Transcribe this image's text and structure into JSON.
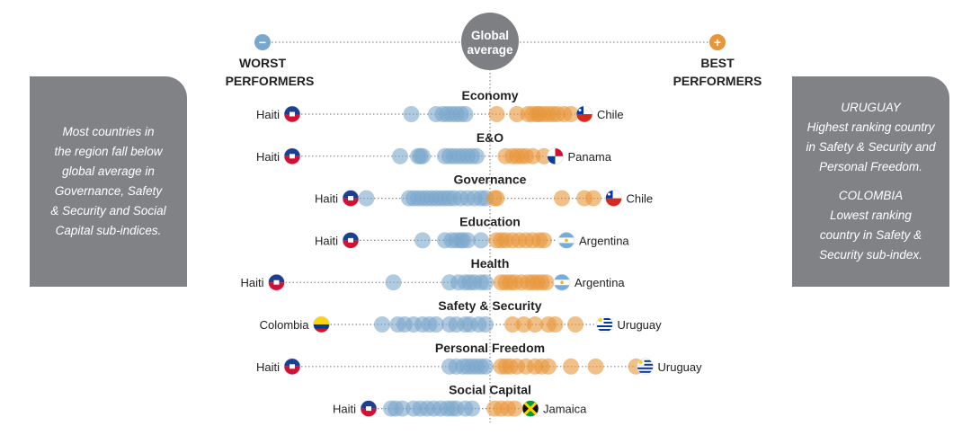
{
  "legend": {
    "worst_line1": "WORST",
    "worst_line2": "PERFORMERS",
    "best_line1": "BEST",
    "best_line2": "PERFORMERS",
    "center_line1": "Global",
    "center_line2": "average",
    "minus_symbol": "−",
    "plus_symbol": "+"
  },
  "left_panel": {
    "lines": [
      "Most countries in",
      "the region fall below",
      "global average in",
      "Governance, Safety",
      "& Security and Social",
      "Capital sub-indices."
    ]
  },
  "right_panel": {
    "block1": [
      "URUGUAY",
      "Highest ranking country",
      "in Safety & Security and",
      "Personal Freedom."
    ],
    "block2": [
      "COLOMBIA",
      "Lowest ranking",
      "country in Safety &",
      "Security sub-index."
    ]
  },
  "colors": {
    "below_average": "#7ba7cc",
    "above_average": "#e8963a",
    "average_circle": "#7d7f82",
    "panel": "#808285",
    "dotted_line": "#8a8a8a"
  },
  "chart_data": {
    "type": "scatter",
    "description_of_encoding": "",
    "rows": [
      {
        "category": "Economy",
        "worst": {
          "country": "Haiti",
          "flag": "haiti-flag",
          "x": -0.88
        },
        "best": {
          "country": "Chile",
          "flag": "chile-flag",
          "x": 0.42
        },
        "points": [
          -0.35,
          -0.24,
          -0.21,
          -0.19,
          -0.17,
          -0.15,
          -0.13,
          -0.11,
          0.03,
          0.12,
          0.17,
          0.19,
          0.21,
          0.22,
          0.24,
          0.26,
          0.28,
          0.3,
          0.33,
          0.36
        ]
      },
      {
        "category": "E&O",
        "worst": {
          "country": "Haiti",
          "flag": "haiti-flag",
          "x": -0.88
        },
        "best": {
          "country": "Panama",
          "flag": "panama-flag",
          "x": 0.29
        },
        "points": [
          -0.4,
          -0.32,
          -0.31,
          -0.3,
          -0.2,
          -0.18,
          -0.16,
          -0.14,
          -0.12,
          -0.1,
          -0.08,
          -0.06,
          0.07,
          0.1,
          0.12,
          0.14,
          0.16,
          0.19,
          0.24
        ]
      },
      {
        "category": "Governance",
        "worst": {
          "country": "Haiti",
          "flag": "haiti-flag",
          "x": -0.62
        },
        "best": {
          "country": "Chile",
          "flag": "chile-flag",
          "x": 0.55
        },
        "points": [
          -0.55,
          -0.36,
          -0.34,
          -0.32,
          -0.3,
          -0.28,
          -0.26,
          -0.24,
          -0.22,
          -0.2,
          -0.18,
          -0.16,
          -0.13,
          -0.1,
          -0.07,
          -0.04,
          -0.02,
          0.02,
          0.03,
          0.32,
          0.42,
          0.46
        ]
      },
      {
        "category": "Education",
        "worst": {
          "country": "Haiti",
          "flag": "haiti-flag",
          "x": -0.62
        },
        "best": {
          "country": "Argentina",
          "flag": "argentina-flag",
          "x": 0.34
        },
        "points": [
          -0.3,
          -0.2,
          -0.17,
          -0.15,
          -0.13,
          -0.12,
          -0.1,
          -0.04,
          0.03,
          0.05,
          0.07,
          0.1,
          0.13,
          0.16,
          0.19,
          0.22,
          0.24
        ]
      },
      {
        "category": "Health",
        "worst": {
          "country": "Haiti",
          "flag": "haiti-flag",
          "x": -0.95
        },
        "best": {
          "country": "Argentina",
          "flag": "argentina-flag",
          "x": 0.32
        },
        "points": [
          -0.43,
          -0.18,
          -0.14,
          -0.11,
          -0.09,
          -0.07,
          -0.04,
          -0.02,
          0.05,
          0.07,
          0.09,
          0.11,
          0.14,
          0.17,
          0.19,
          0.21,
          0.23,
          0.25
        ]
      },
      {
        "category": "Safety & Security",
        "worst": {
          "country": "Colombia",
          "flag": "colombia-flag",
          "x": -0.75
        },
        "best": {
          "country": "Uruguay",
          "flag": "uruguay-flag",
          "x": 0.51
        },
        "points": [
          -0.48,
          -0.41,
          -0.38,
          -0.34,
          -0.3,
          -0.27,
          -0.24,
          -0.18,
          -0.15,
          -0.11,
          -0.09,
          -0.05,
          -0.02,
          0.1,
          0.15,
          0.2,
          0.26,
          0.29,
          0.38
        ]
      },
      {
        "category": "Personal Freedom",
        "worst": {
          "country": "Haiti",
          "flag": "haiti-flag",
          "x": -0.88
        },
        "best": {
          "country": "Uruguay",
          "flag": "uruguay-flag",
          "x": 0.69
        },
        "points": [
          -0.18,
          -0.15,
          -0.12,
          -0.1,
          -0.08,
          -0.06,
          -0.04,
          -0.02,
          0.05,
          0.07,
          0.09,
          0.12,
          0.16,
          0.2,
          0.23,
          0.26,
          0.36,
          0.47,
          0.65
        ]
      },
      {
        "category": "Social Capital",
        "worst": {
          "country": "Haiti",
          "flag": "haiti-flag",
          "x": -0.54
        },
        "best": {
          "country": "Jamaica",
          "flag": "jamaica-flag",
          "x": 0.18
        },
        "points": [
          -0.44,
          -0.42,
          -0.39,
          -0.34,
          -0.31,
          -0.28,
          -0.25,
          -0.22,
          -0.19,
          -0.17,
          -0.15,
          -0.11,
          -0.08,
          0.02,
          0.05,
          0.08,
          0.11
        ]
      }
    ]
  }
}
